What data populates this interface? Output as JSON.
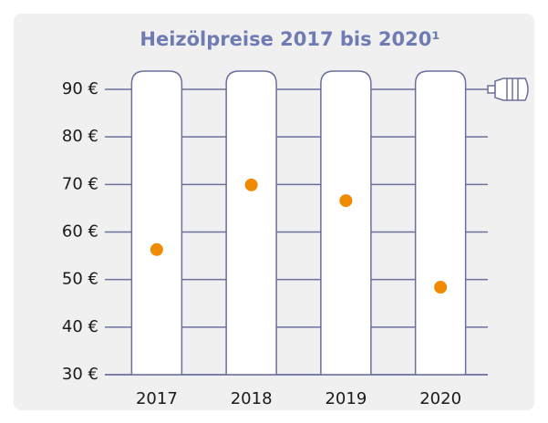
{
  "chart_data": {
    "type": "dot",
    "title": "Heizölpreise 2017 bis 2020¹",
    "categories": [
      "2017",
      "2018",
      "2019",
      "2020"
    ],
    "values": [
      56.3,
      69.9,
      66.6,
      48.4
    ],
    "color": "#f08a00",
    "ylim": [
      30,
      90
    ],
    "yticks": [
      {
        "value": 30,
        "label": "30 €"
      },
      {
        "value": 40,
        "label": "40 €"
      },
      {
        "value": 50,
        "label": "50 €"
      },
      {
        "value": 60,
        "label": "60 €"
      },
      {
        "value": 70,
        "label": "70 €"
      },
      {
        "value": 80,
        "label": "80 €"
      },
      {
        "value": 90,
        "label": "90 €"
      }
    ],
    "grid": true
  }
}
